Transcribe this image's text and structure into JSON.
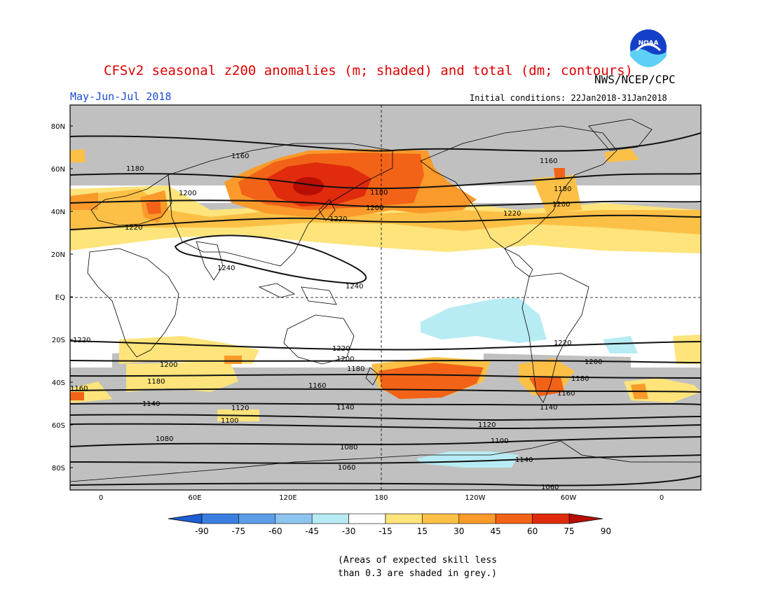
{
  "title": "CFSv2 seasonal z200 anomalies (m; shaded) and total (dm; contours)",
  "agency": "NWS/NCEP/CPC",
  "logo_text": "NOAA",
  "season": "May-Jun-Jul 2018",
  "initial_conditions": "Initial conditions: 22Jan2018-31Jan2018",
  "lat_labels": [
    "80N",
    "60N",
    "40N",
    "20N",
    "EQ",
    "20S",
    "40S",
    "60S",
    "80S"
  ],
  "lon_labels": [
    "0",
    "60E",
    "120E",
    "180",
    "120W",
    "60W",
    "0"
  ],
  "colorbar": {
    "colors": [
      "#1f5fd6",
      "#3a7ee0",
      "#5d9de8",
      "#8ec4f0",
      "#b8ecf4",
      "#ffffff",
      "#fee47a",
      "#fcc046",
      "#f99a2a",
      "#f26318",
      "#e02b0c",
      "#b80e04"
    ],
    "tick_labels": [
      "-90",
      "-75",
      "-60",
      "-45",
      "-30",
      "-15",
      "15",
      "30",
      "45",
      "60",
      "75",
      "90"
    ]
  },
  "contour_labels": [
    "1160",
    "1180",
    "1200",
    "1220",
    "1240",
    "1240",
    "1180",
    "1200",
    "1220",
    "1160",
    "1180",
    "1200",
    "1220",
    "1220",
    "1200",
    "1180",
    "1160",
    "1140",
    "1120",
    "1100",
    "1080",
    "1060",
    "1220",
    "1200",
    "1180",
    "1160",
    "1140",
    "1120",
    "1100",
    "1080",
    "1060",
    "1220",
    "1200",
    "1180",
    "1160",
    "1140",
    "1180",
    "1160",
    "1140",
    "1080",
    "1160",
    "1180",
    "1200",
    "1220",
    "1220",
    "1200",
    "1060"
  ],
  "note_line1": "(Areas of expected skill less",
  "note_line2": "than 0.3 are shaded in grey.)",
  "colors": {
    "grey_mask": "#c0c0c0",
    "title": "#e00000",
    "season": "#1a4bd8"
  }
}
